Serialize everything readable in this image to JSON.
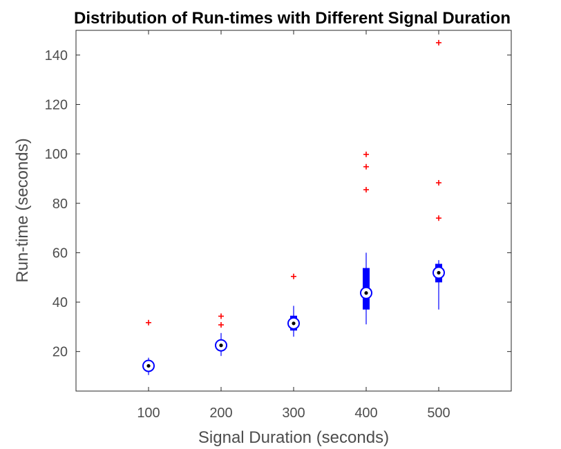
{
  "chart_data": {
    "type": "box",
    "title": "Distribution of Run-times with Different Signal Duration",
    "xlabel": "Signal Duration (seconds)",
    "ylabel": "Run-time (seconds)",
    "xlim": [
      0,
      600
    ],
    "ylim": [
      4,
      150
    ],
    "x_ticks": [
      100,
      200,
      300,
      400,
      500
    ],
    "y_ticks": [
      20,
      40,
      60,
      80,
      100,
      120,
      140
    ],
    "grid": false,
    "legend": "none",
    "box_color": "#0000ff",
    "outlier_color": "#ff0000",
    "median_dot_color": "#000000",
    "boxes": [
      {
        "x": 100,
        "whisker_low": 10.5,
        "q1": 13.2,
        "median": 14.2,
        "q3": 15.3,
        "whisker_high": 17.5,
        "outliers": [
          31.7
        ]
      },
      {
        "x": 200,
        "whisker_low": 18.2,
        "q1": 21.0,
        "median": 22.5,
        "q3": 24.0,
        "whisker_high": 27.5,
        "outliers": [
          30.8,
          34.3
        ]
      },
      {
        "x": 300,
        "whisker_low": 26.0,
        "q1": 28.5,
        "median": 31.4,
        "q3": 34.5,
        "whisker_high": 38.5,
        "outliers": [
          50.4
        ]
      },
      {
        "x": 400,
        "whisker_low": 31.0,
        "q1": 37.0,
        "median": 43.7,
        "q3": 53.8,
        "whisker_high": 60.0,
        "outliers": [
          85.5,
          94.8,
          99.8
        ]
      },
      {
        "x": 500,
        "whisker_low": 37.0,
        "q1": 48.0,
        "median": 51.9,
        "q3": 55.5,
        "whisker_high": 57.0,
        "outliers": [
          74.0,
          88.3,
          145.0
        ]
      }
    ]
  }
}
